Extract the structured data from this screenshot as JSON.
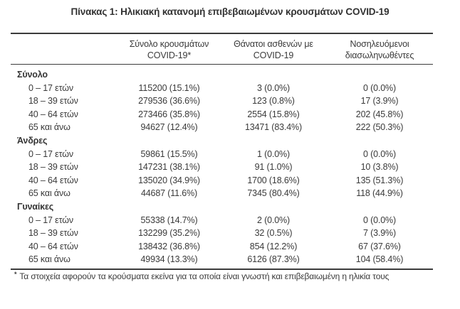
{
  "page": {
    "title": "Πίνακας 1: Ηλικιακή κατανομή επιβεβαιωμένων κρουσμάτων COVID-19"
  },
  "table": {
    "columns": [
      {
        "id": "cases",
        "line1": "Σύνολο κρουσμάτων",
        "line2": "COVID-19*"
      },
      {
        "id": "deaths",
        "line1": "Θάνατοι ασθενών με",
        "line2": "COVID-19"
      },
      {
        "id": "intubated",
        "line1": "Νοσηλευόμενοι",
        "line2": "διασωληνωθέντες"
      }
    ],
    "sections": [
      {
        "label": "Σύνολο",
        "rows": [
          {
            "label": "0 – 17 ετών",
            "cases": "115200 (15.1%)",
            "deaths": "3 (0.0%)",
            "intubated": "0 (0.0%)"
          },
          {
            "label": "18 – 39 ετών",
            "cases": "279536 (36.6%)",
            "deaths": "123 (0.8%)",
            "intubated": "17 (3.9%)"
          },
          {
            "label": "40 – 64 ετών",
            "cases": "273466 (35.8%)",
            "deaths": "2554 (15.8%)",
            "intubated": "202 (45.8%)"
          },
          {
            "label": "65 και άνω",
            "cases": "94627 (12.4%)",
            "deaths": "13471 (83.4%)",
            "intubated": "222 (50.3%)"
          }
        ]
      },
      {
        "label": "Άνδρες",
        "rows": [
          {
            "label": "0 – 17 ετών",
            "cases": "59861 (15.5%)",
            "deaths": "1 (0.0%)",
            "intubated": "0 (0.0%)"
          },
          {
            "label": "18 – 39 ετών",
            "cases": "147231 (38.1%)",
            "deaths": "91 (1.0%)",
            "intubated": "10 (3.8%)"
          },
          {
            "label": "40 – 64 ετών",
            "cases": "135020 (34.9%)",
            "deaths": "1700 (18.6%)",
            "intubated": "135 (51.3%)"
          },
          {
            "label": "65 και άνω",
            "cases": "44687 (11.6%)",
            "deaths": "7345 (80.4%)",
            "intubated": "118 (44.9%)"
          }
        ]
      },
      {
        "label": "Γυναίκες",
        "rows": [
          {
            "label": "0 – 17 ετών",
            "cases": "55338 (14.7%)",
            "deaths": "2 (0.0%)",
            "intubated": "0 (0.0%)"
          },
          {
            "label": "18 – 39 ετών",
            "cases": "132299 (35.2%)",
            "deaths": "32 (0.5%)",
            "intubated": "7 (3.9%)"
          },
          {
            "label": "40 – 64 ετών",
            "cases": "138432 (36.8%)",
            "deaths": "854 (12.2%)",
            "intubated": "67 (37.6%)"
          },
          {
            "label": "65 και άνω",
            "cases": "49934 (13.3%)",
            "deaths": "6126 (87.3%)",
            "intubated": "104 (58.4%)"
          }
        ]
      }
    ],
    "footnote_marker": "*",
    "footnote_text": "Τα στοιχεία αφορούν τα κρούσματα εκείνα για τα οποία είναι γνωστή και επιβεβαιωμένη η ηλικία τους"
  },
  "colors": {
    "text": "#3a3a3a",
    "rule": "#3c3c3c",
    "background": "#ffffff"
  }
}
